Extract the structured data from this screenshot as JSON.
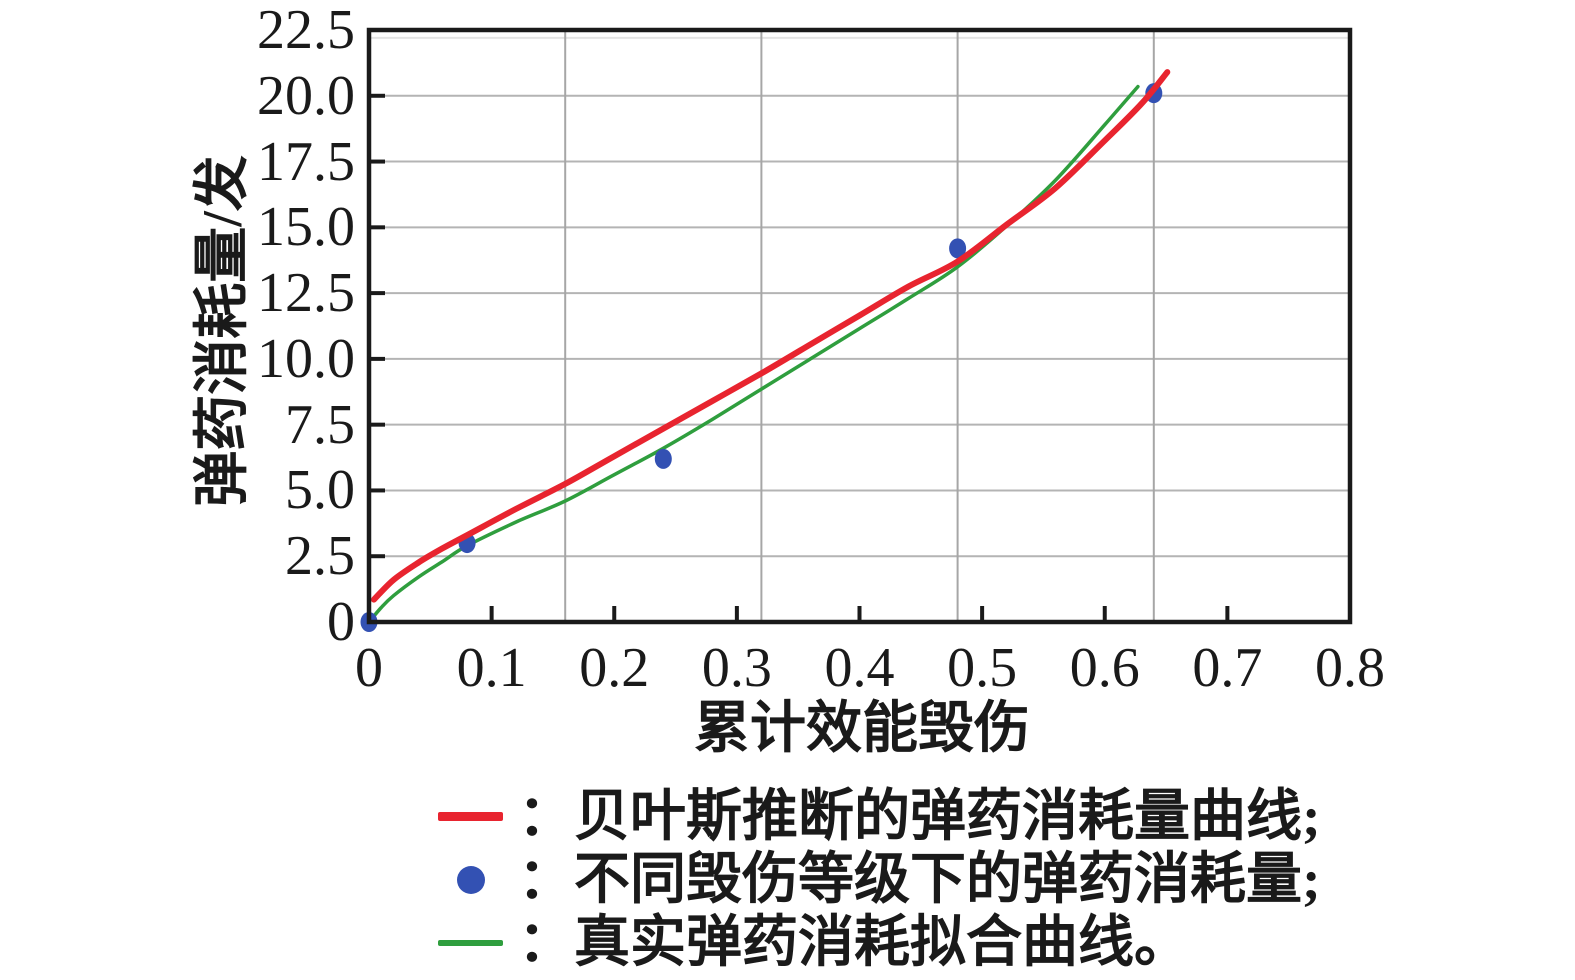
{
  "figure": {
    "background": "#ffffff"
  },
  "colors": {
    "red_curve": "#e8242f",
    "green_curve": "#2f9e3e",
    "blue_marker": "#3351b3",
    "h_gridline": "#b4b4b4",
    "v_gridline": "#a6a6a6",
    "faint_gridline": "#e4e4e4",
    "axis": "#1a1a1a"
  },
  "axes": {
    "x": {
      "label": "累计效能毁伤",
      "min": 0,
      "max": 0.8,
      "tick_values": [
        0,
        0.1,
        0.2,
        0.3,
        0.4,
        0.5,
        0.6,
        0.7,
        0.8
      ],
      "tick_labels": [
        "0",
        "0.1",
        "0.2",
        "0.3",
        "0.4",
        "0.5",
        "0.6",
        "0.7",
        "0.8"
      ],
      "gridline_values": [
        0.16,
        0.32,
        0.48,
        0.64
      ]
    },
    "y": {
      "label": "弹药消耗量/发",
      "min": 0,
      "max": 22.5,
      "tick_values": [
        0,
        2.5,
        5.0,
        7.5,
        10.0,
        12.5,
        15.0,
        17.5,
        20.0,
        22.5
      ],
      "tick_labels": [
        "0",
        "2.5",
        "5.0",
        "7.5",
        "10.0",
        "12.5",
        "15.0",
        "17.5",
        "20.0",
        "22.5"
      ],
      "gridline_values": [
        2.5,
        5.0,
        7.5,
        10.0,
        12.5,
        15.0,
        17.5,
        20.0
      ],
      "faint_gridline_value": 22.2
    }
  },
  "chart_data": {
    "type": "line+scatter",
    "title": "",
    "xlabel": "累计效能毁伤",
    "ylabel": "弹药消耗量/发",
    "xlim": [
      0,
      0.8
    ],
    "ylim": [
      0,
      22.5
    ],
    "grid": "on",
    "legend_position": "below",
    "series": [
      {
        "name": "贝叶斯推断的弹药消耗量曲线",
        "type": "line",
        "color_key": "red_curve",
        "stroke_width": 6,
        "points": [
          [
            0.004,
            0.85
          ],
          [
            0.02,
            1.6
          ],
          [
            0.04,
            2.25
          ],
          [
            0.06,
            2.8
          ],
          [
            0.08,
            3.3
          ],
          [
            0.12,
            4.3
          ],
          [
            0.16,
            5.25
          ],
          [
            0.2,
            6.3
          ],
          [
            0.24,
            7.35
          ],
          [
            0.28,
            8.4
          ],
          [
            0.32,
            9.45
          ],
          [
            0.36,
            10.55
          ],
          [
            0.4,
            11.65
          ],
          [
            0.44,
            12.75
          ],
          [
            0.48,
            13.7
          ],
          [
            0.52,
            15.1
          ],
          [
            0.56,
            16.5
          ],
          [
            0.6,
            18.3
          ],
          [
            0.63,
            19.7
          ],
          [
            0.651,
            20.9
          ]
        ]
      },
      {
        "name": "不同毁伤等级下的弹药消耗量",
        "type": "scatter",
        "color_key": "blue_marker",
        "marker_rx": 8.5,
        "marker_ry": 10,
        "points": [
          [
            0,
            0
          ],
          [
            0.08,
            3.0
          ],
          [
            0.24,
            6.2
          ],
          [
            0.48,
            14.2
          ],
          [
            0.64,
            20.1
          ]
        ]
      },
      {
        "name": "真实弹药消耗拟合曲线",
        "type": "line",
        "color_key": "green_curve",
        "stroke_width": 3.5,
        "points": [
          [
            0,
            0
          ],
          [
            0.01,
            0.55
          ],
          [
            0.02,
            1.0
          ],
          [
            0.04,
            1.7
          ],
          [
            0.06,
            2.3
          ],
          [
            0.08,
            2.9
          ],
          [
            0.12,
            3.8
          ],
          [
            0.16,
            4.6
          ],
          [
            0.2,
            5.6
          ],
          [
            0.24,
            6.6
          ],
          [
            0.28,
            7.7
          ],
          [
            0.32,
            8.85
          ],
          [
            0.36,
            10.0
          ],
          [
            0.4,
            11.15
          ],
          [
            0.44,
            12.3
          ],
          [
            0.48,
            13.5
          ],
          [
            0.52,
            15.05
          ],
          [
            0.56,
            16.8
          ],
          [
            0.6,
            18.9
          ],
          [
            0.627,
            20.35
          ]
        ]
      }
    ]
  },
  "legend": {
    "items": [
      {
        "marker": "red-line",
        "label": "：贝叶斯推断的弹药消耗量曲线;"
      },
      {
        "marker": "blue-dot",
        "label": "：不同毁伤等级下的弹药消耗量;"
      },
      {
        "marker": "green-line",
        "label": "：真实弹药消耗拟合曲线。"
      }
    ]
  }
}
